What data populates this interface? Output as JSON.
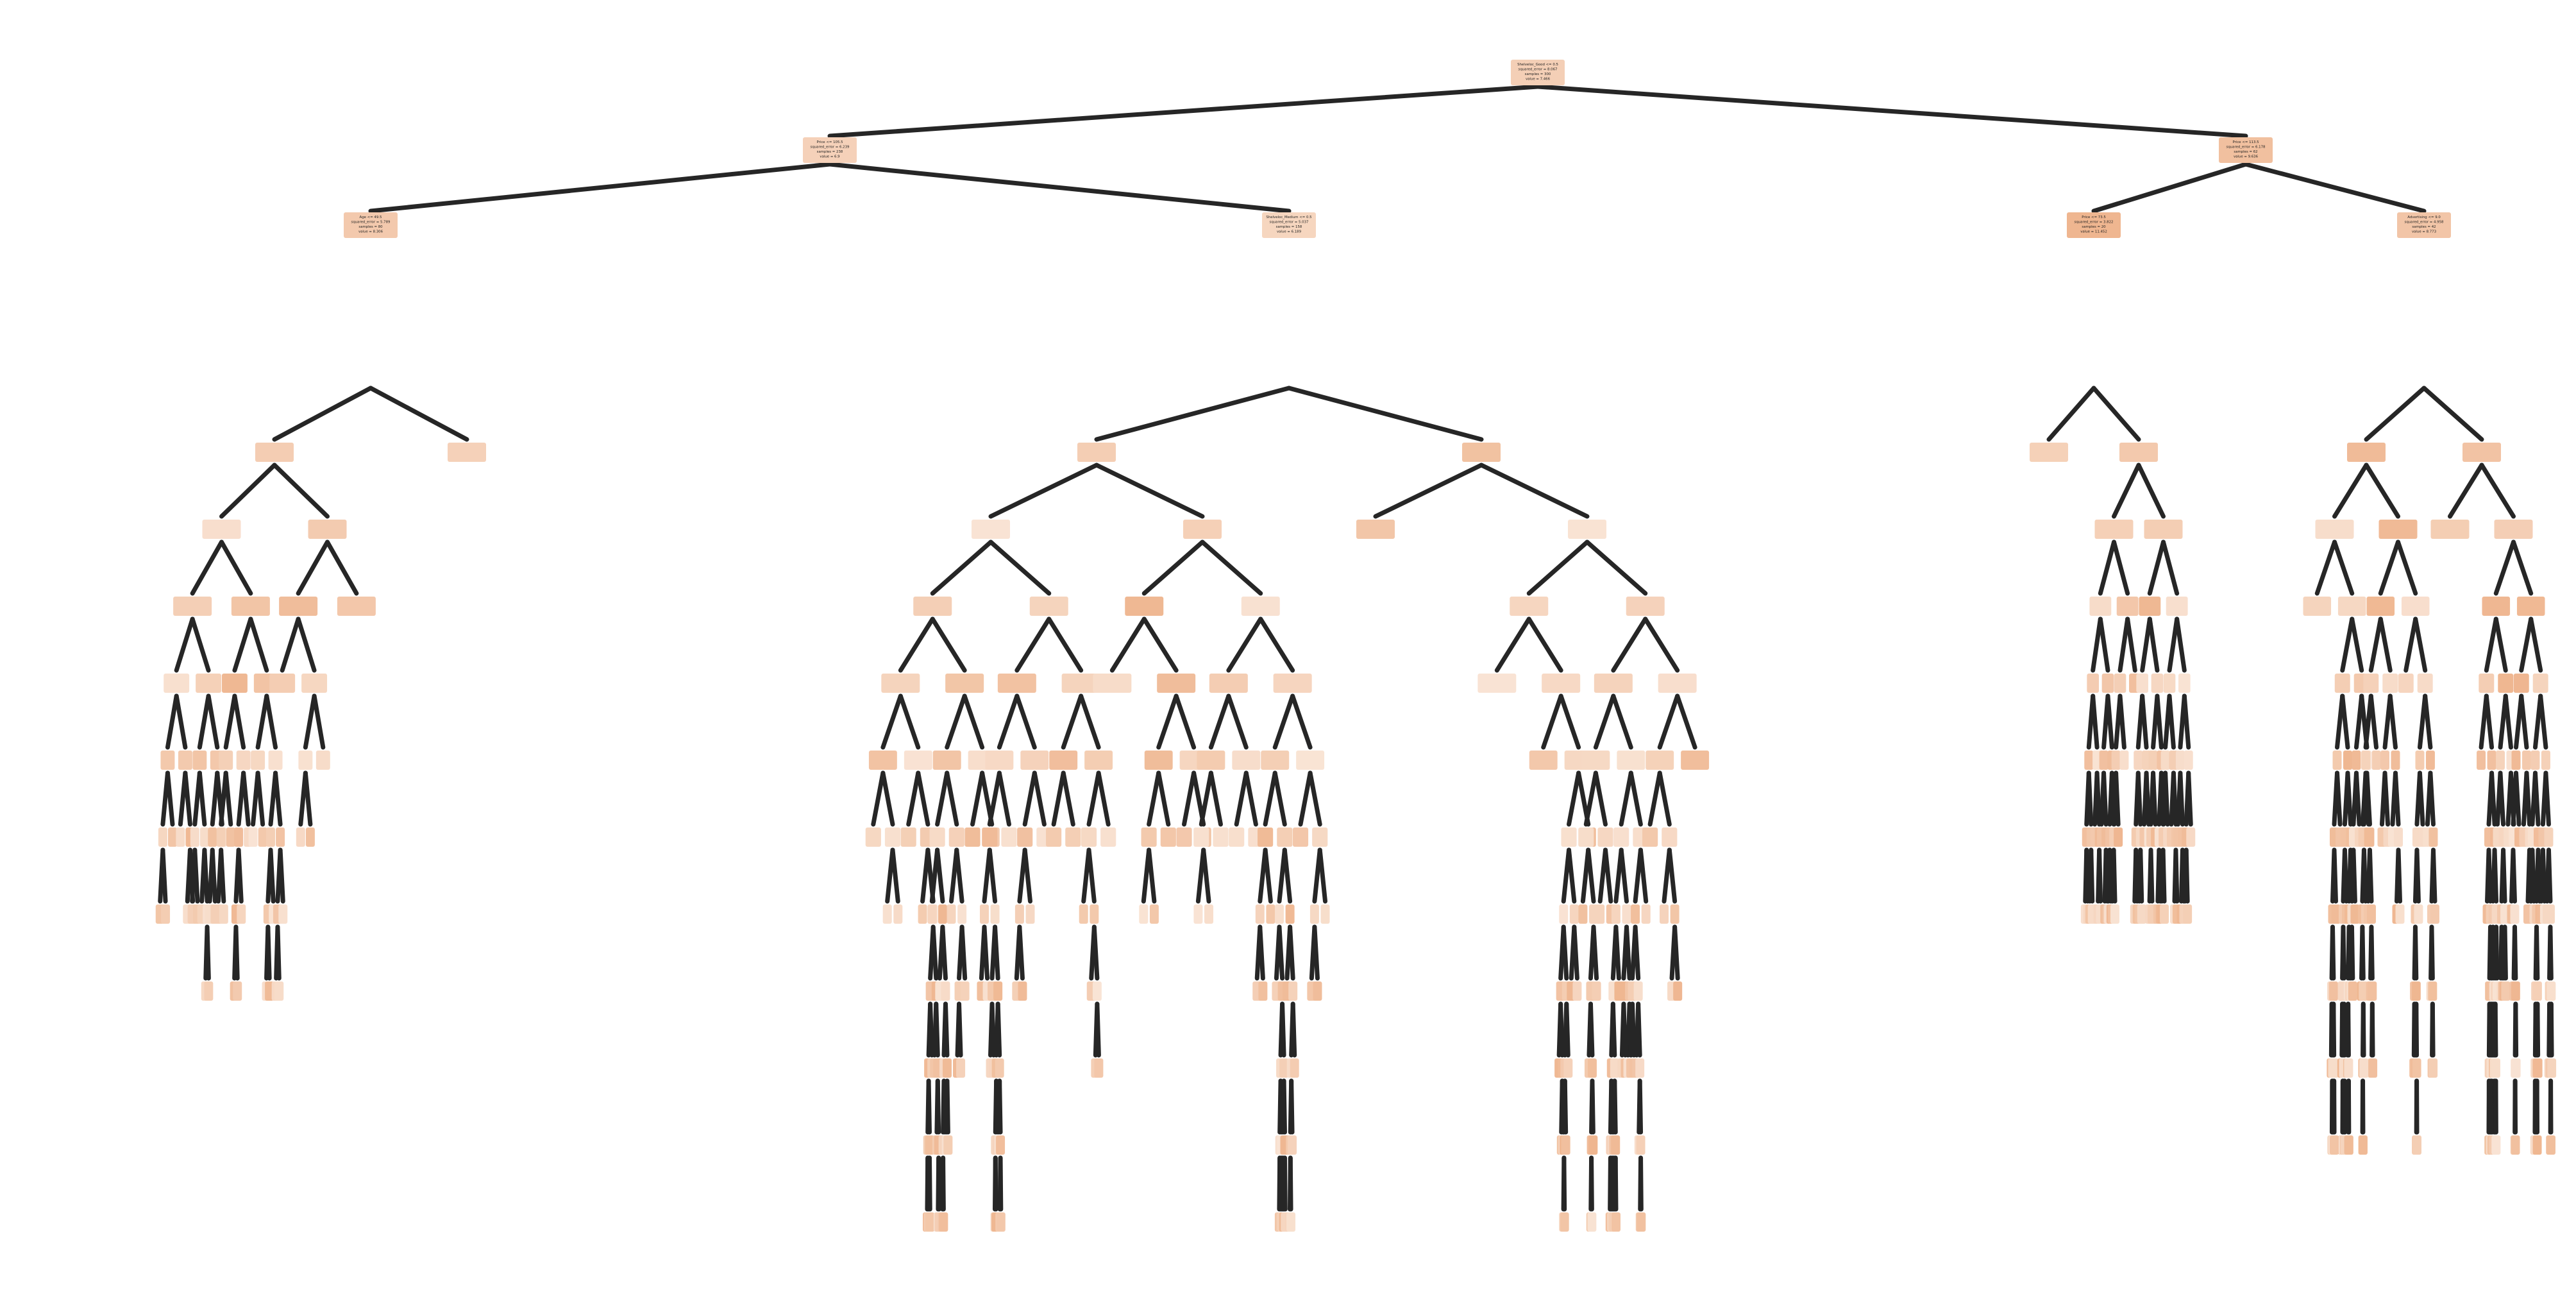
{
  "diagram": {
    "type": "regression-tree",
    "color_low": "#fbeee4",
    "color_high": "#e5884b",
    "edge_color": "#262626",
    "nodes": [
      {
        "id": "root",
        "lines": [
          "Shelveloc_Good <= 0.5",
          "squared_error = 8.067",
          "samples = 300",
          "value = 7.466"
        ],
        "shade": 0.3
      },
      {
        "id": "L",
        "lines": [
          "Price <= 105.5",
          "squared_error = 6.239",
          "samples = 238",
          "value = 6.9"
        ],
        "shade": 0.28
      },
      {
        "id": "R",
        "lines": [
          "Price <= 113.5",
          "squared_error = 6.178",
          "samples = 62",
          "value = 9.636"
        ],
        "shade": 0.45
      },
      {
        "id": "LL",
        "lines": [
          "Age <= 49.5",
          "squared_error = 5.789",
          "samples = 80",
          "value = 8.306"
        ],
        "shade": 0.36
      },
      {
        "id": "LR",
        "lines": [
          "Shelveloc_Medium <= 0.5",
          "squared_error = 5.037",
          "samples = 158",
          "value = 6.189"
        ],
        "shade": 0.24
      },
      {
        "id": "RL",
        "lines": [
          "Price <= 73.5",
          "squared_error = 3.822",
          "samples = 20",
          "value = 11.452"
        ],
        "shade": 0.55
      },
      {
        "id": "RR",
        "lines": [
          "Advertising <= 9.0",
          "squared_error = 4.958",
          "samples = 42",
          "value = 8.773"
        ],
        "shade": 0.4
      }
    ]
  }
}
